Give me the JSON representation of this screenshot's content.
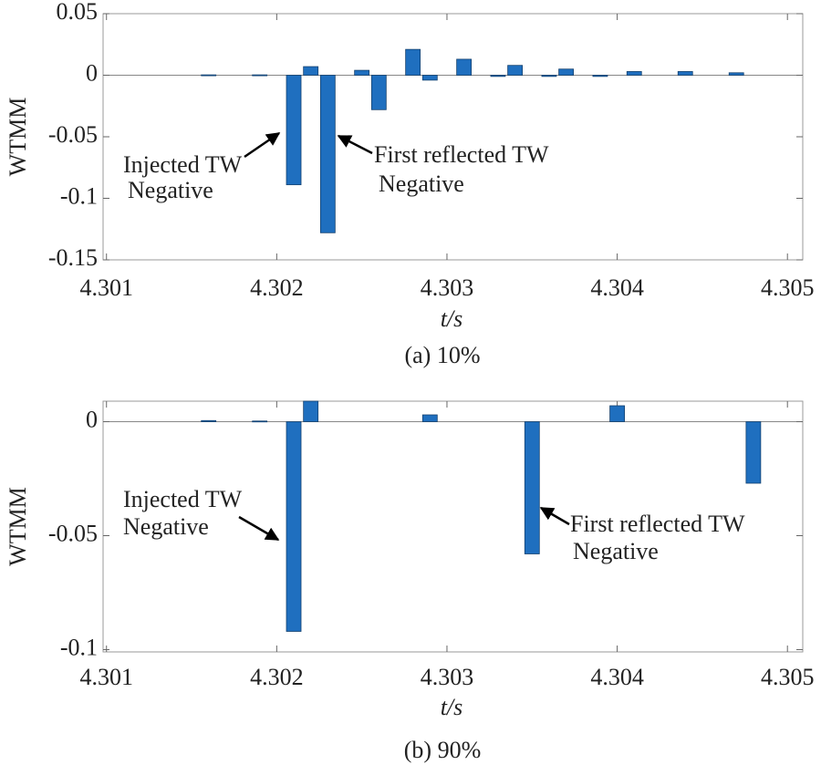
{
  "chart_data": [
    {
      "type": "bar",
      "caption": "(a) 10%",
      "xlabel": "t/s",
      "ylabel": "WTMM",
      "xlim": [
        4.30098,
        4.30509
      ],
      "xticks": [
        4.301,
        4.302,
        4.303,
        4.304,
        4.305
      ],
      "ylim": [
        -0.15,
        0.05
      ],
      "yticks": [
        0.05,
        0,
        -0.05,
        -0.1,
        -0.15
      ],
      "color": "#1f6fbf",
      "x": [
        4.3016,
        4.3019,
        4.3021,
        4.3022,
        4.3023,
        4.3025,
        4.3026,
        4.3028,
        4.3029,
        4.3031,
        4.3033,
        4.3034,
        4.3036,
        4.3037,
        4.3039,
        4.3041,
        4.3044,
        4.3047
      ],
      "values": [
        0.0003,
        0.0003,
        -0.089,
        0.007,
        -0.128,
        0.004,
        -0.028,
        0.021,
        -0.004,
        0.013,
        -0.001,
        0.008,
        -0.001,
        0.005,
        -0.001,
        0.003,
        0.003,
        0.002
      ],
      "annotations": [
        {
          "lines": [
            "Injected TW",
            "Negative"
          ]
        },
        {
          "lines": [
            "First reflected TW",
            "Negative"
          ]
        }
      ]
    },
    {
      "type": "bar",
      "caption": "(b) 90%",
      "xlabel": "t/s",
      "ylabel": "WTMM",
      "xlim": [
        4.30098,
        4.30509
      ],
      "xticks": [
        4.301,
        4.302,
        4.303,
        4.304,
        4.305
      ],
      "ylim": [
        -0.101,
        0.009
      ],
      "yticks": [
        0,
        -0.05,
        -0.1
      ],
      "color": "#1f6fbf",
      "x": [
        4.3016,
        4.3019,
        4.3021,
        4.3022,
        4.3029,
        4.3035,
        4.304,
        4.3048
      ],
      "values": [
        0.0005,
        0.0003,
        -0.092,
        0.009,
        0.003,
        -0.058,
        0.007,
        -0.027
      ],
      "annotations": [
        {
          "lines": [
            "Injected TW",
            "Negative"
          ]
        },
        {
          "lines": [
            "First reflected TW",
            "Negative"
          ]
        }
      ]
    }
  ]
}
